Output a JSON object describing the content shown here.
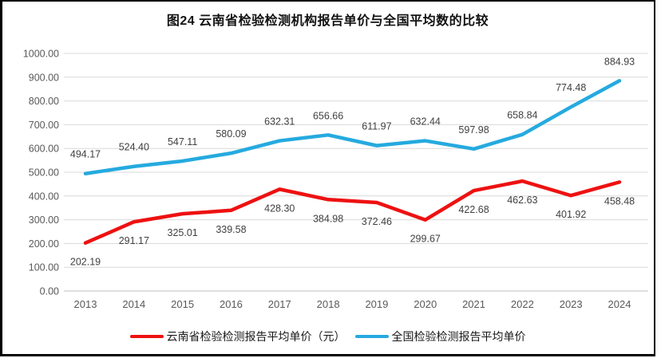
{
  "figure": {
    "title": "图24 云南省检验检测机构报告单价与全国平均数的比较"
  },
  "chart_data": {
    "type": "line",
    "title": "图24 云南省检验检测机构报告单价与全国平均数的比较",
    "categories": [
      "2013",
      "2014",
      "2015",
      "2016",
      "2017",
      "2018",
      "2019",
      "2020",
      "2021",
      "2022",
      "2023",
      "2024"
    ],
    "series": [
      {
        "name": "云南省检验检测报告平均单价（元）",
        "color": "#ee1111",
        "label_position": "below",
        "values": [
          202.19,
          291.17,
          325.01,
          339.58,
          428.3,
          384.98,
          372.46,
          299.67,
          422.68,
          462.63,
          401.92,
          458.48
        ]
      },
      {
        "name": "全国检验检测报告平均单价",
        "color": "#25aadf",
        "label_position": "above",
        "values": [
          494.17,
          524.4,
          547.11,
          580.09,
          632.31,
          656.66,
          611.97,
          632.44,
          597.98,
          658.84,
          774.48,
          884.93
        ]
      }
    ],
    "xlabel": "",
    "ylabel": "",
    "ylim": [
      0,
      1000
    ],
    "y_tick_step": 100,
    "y_tick_decimals": 2,
    "data_label_decimals": 2,
    "grid": "horizontal",
    "legend_position": "bottom",
    "colors": {
      "gridline": "#d9d9d9",
      "zero_axis": "#bfbfbf",
      "axis_label": "#595959",
      "data_label": "#404040",
      "title": "#111111",
      "frame_border": "#000000"
    }
  }
}
